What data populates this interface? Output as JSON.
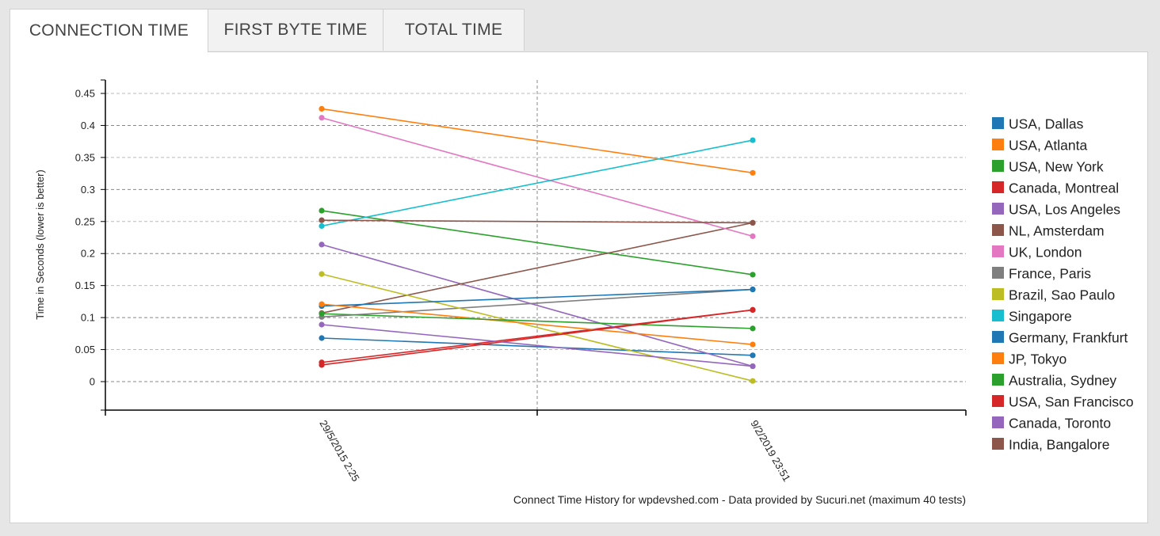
{
  "tabs": [
    {
      "label": "CONNECTION TIME",
      "active": true
    },
    {
      "label": "FIRST BYTE TIME",
      "active": false
    },
    {
      "label": "TOTAL TIME",
      "active": false
    }
  ],
  "chart_data": {
    "type": "line",
    "title": "",
    "ylabel": "Time in Seconds (lower is better)",
    "xlabel": "",
    "caption": "Connect Time History for wpdevshed.com - Data provided by Sucuri.net (maximum 40 tests)",
    "x": [
      "29/5/2015 2:25",
      "9/2/2019 23:51"
    ],
    "y_ticks": [
      0,
      0.05,
      0.1,
      0.15,
      0.2,
      0.25,
      0.3,
      0.35,
      0.4,
      0.45
    ],
    "y_tick_labels": [
      "0",
      "0.05",
      "0.1",
      "0.15",
      "0.2",
      "0.25",
      "0.3",
      "0.35",
      "0.4",
      "0.45"
    ],
    "ylim": [
      -0.045,
      0.47
    ],
    "grid": true,
    "legend_position": "right",
    "series": [
      {
        "name": "USA, Dallas",
        "color": "#1f77b4",
        "values": [
          0.068,
          0.041
        ]
      },
      {
        "name": "USA, Atlanta",
        "color": "#ff7f0e",
        "values": [
          0.426,
          0.326
        ]
      },
      {
        "name": "USA, New York",
        "color": "#2ca02c",
        "values": [
          0.267,
          0.167
        ]
      },
      {
        "name": "Canada, Montreal",
        "color": "#d62728",
        "values": [
          0.03,
          0.112
        ]
      },
      {
        "name": "USA, Los Angeles",
        "color": "#9467bd",
        "values": [
          0.214,
          0.024
        ]
      },
      {
        "name": "NL, Amsterdam",
        "color": "#8c564b",
        "values": [
          0.107,
          0.248
        ]
      },
      {
        "name": "UK, London",
        "color": "#e377c2",
        "values": [
          0.412,
          0.227
        ]
      },
      {
        "name": "France, Paris",
        "color": "#7f7f7f",
        "values": [
          0.101,
          0.144
        ]
      },
      {
        "name": "Brazil, Sao Paulo",
        "color": "#bcbd22",
        "values": [
          0.168,
          0.001
        ]
      },
      {
        "name": "Singapore",
        "color": "#17becf",
        "values": [
          0.243,
          0.377
        ]
      },
      {
        "name": "Germany, Frankfurt",
        "color": "#1f77b4",
        "values": [
          0.118,
          0.144
        ]
      },
      {
        "name": "JP, Tokyo",
        "color": "#ff7f0e",
        "values": [
          0.121,
          0.058
        ]
      },
      {
        "name": "Australia, Sydney",
        "color": "#2ca02c",
        "values": [
          0.106,
          0.083
        ]
      },
      {
        "name": "USA, San Francisco",
        "color": "#d62728",
        "values": [
          0.026,
          0.112
        ]
      },
      {
        "name": "Canada, Toronto",
        "color": "#9467bd",
        "values": [
          0.089,
          0.024
        ]
      },
      {
        "name": "India, Bangalore",
        "color": "#8c564b",
        "values": [
          0.252,
          0.248
        ]
      }
    ]
  }
}
